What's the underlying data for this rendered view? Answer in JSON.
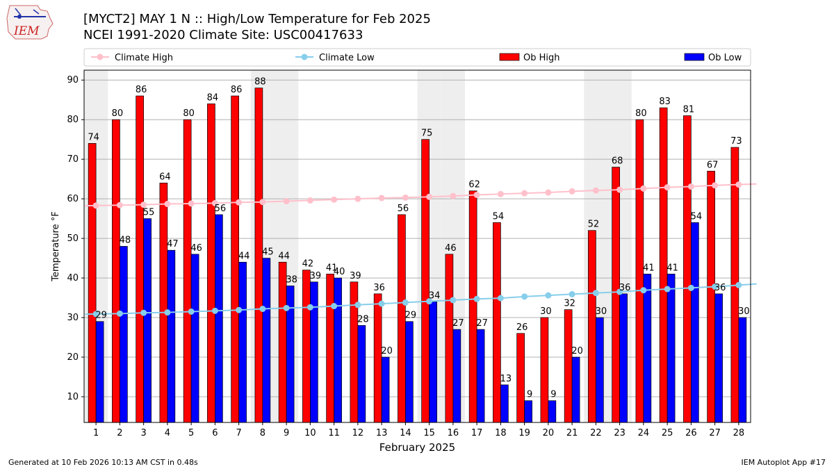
{
  "header": {
    "title": "[MYCT2] MAY 1 N :: High/Low Temperature for Feb 2025",
    "subtitle": "NCEI 1991-2020 Climate Site: USC00417633",
    "logo_text": "IEM"
  },
  "footer": {
    "generated": "Generated at 10 Feb 2026 10:13 AM CST in 0.48s",
    "app": "IEM Autoplot App #17"
  },
  "chart_data": {
    "type": "bar",
    "xlabel": "February 2025",
    "ylabel": "Temperature °F",
    "xlim": [
      0.5,
      28.5
    ],
    "ylim": [
      3.5,
      92.5
    ],
    "yticks": [
      10,
      20,
      30,
      40,
      50,
      60,
      70,
      80,
      90
    ],
    "grid": true,
    "legend_position": "top",
    "days": [
      1,
      2,
      3,
      4,
      5,
      6,
      7,
      8,
      9,
      10,
      11,
      12,
      13,
      14,
      15,
      16,
      17,
      18,
      19,
      20,
      21,
      22,
      23,
      24,
      25,
      26,
      27,
      28
    ],
    "weekend_days": [
      1,
      8,
      9,
      15,
      16,
      22,
      23
    ],
    "legend": [
      {
        "name": "Climate High",
        "kind": "line",
        "color": "#ffc0cb"
      },
      {
        "name": "Climate Low",
        "kind": "line",
        "color": "#87ceeb"
      },
      {
        "name": "Ob High",
        "kind": "bar",
        "color": "#ff0000"
      },
      {
        "name": "Ob Low",
        "kind": "bar",
        "color": "#0000ff"
      }
    ],
    "ob_high": [
      74,
      80,
      86,
      64,
      80,
      84,
      86,
      88,
      44,
      42,
      41,
      39,
      36,
      56,
      75,
      46,
      62,
      54,
      26,
      30,
      32,
      52,
      68,
      80,
      83,
      81,
      67,
      73
    ],
    "ob_low": [
      29,
      48,
      55,
      47,
      46,
      56,
      44,
      45,
      38,
      39,
      40,
      28,
      20,
      29,
      34,
      27,
      27,
      13,
      9,
      9,
      20,
      30,
      36,
      41,
      41,
      54,
      36,
      30
    ],
    "ob_high_labels": [
      "74",
      "80",
      "86",
      "64",
      "80",
      "84",
      "86",
      "88",
      "44",
      "42",
      "41",
      "39",
      "36",
      "56",
      "75",
      "46",
      "62",
      "54",
      "26",
      "30",
      "32",
      "52",
      "68",
      "80",
      "83",
      "81",
      "67",
      "73"
    ],
    "ob_low_labels": [
      "29",
      "48",
      "55",
      "47",
      "46",
      "56",
      "44",
      "45",
      "38",
      "39",
      "40",
      "28",
      "20",
      "29",
      "34",
      "27",
      "27",
      "13",
      "9",
      "9",
      "20",
      "30",
      "36",
      "41",
      "41",
      "54",
      "36",
      "30"
    ],
    "climate_high": [
      58.3,
      58.4,
      58.5,
      58.7,
      58.8,
      58.9,
      59.1,
      59.2,
      59.4,
      59.6,
      59.8,
      60.0,
      60.2,
      60.3,
      60.5,
      60.7,
      61.0,
      61.2,
      61.4,
      61.6,
      61.9,
      62.1,
      62.3,
      62.6,
      62.9,
      63.1,
      63.4,
      63.6
    ],
    "climate_low": [
      30.9,
      31.0,
      31.2,
      31.3,
      31.5,
      31.7,
      31.9,
      32.2,
      32.4,
      32.6,
      32.9,
      33.2,
      33.5,
      33.8,
      34.1,
      34.4,
      34.7,
      34.9,
      35.3,
      35.6,
      35.9,
      36.2,
      36.5,
      36.9,
      37.2,
      37.5,
      37.8,
      38.2
    ]
  }
}
